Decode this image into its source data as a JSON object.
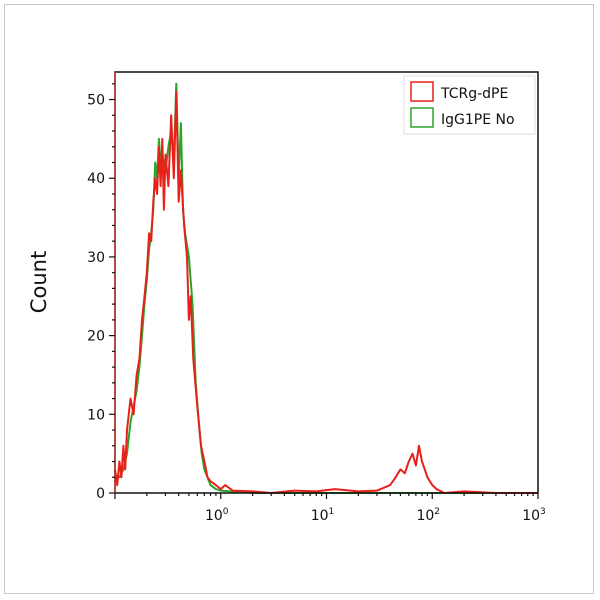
{
  "chart_data": {
    "type": "line",
    "title": "",
    "xlabel": "",
    "ylabel": "Count",
    "xscale": "log",
    "xlim": [
      0.1,
      1000
    ],
    "ylim": [
      0,
      53.5
    ],
    "x_ticks": [
      {
        "value": 1,
        "label": "10",
        "exp": "0"
      },
      {
        "value": 10,
        "label": "10",
        "exp": "1"
      },
      {
        "value": 100,
        "label": "10",
        "exp": "2"
      },
      {
        "value": 1000,
        "label": "10",
        "exp": "3"
      }
    ],
    "y_ticks": [
      0,
      10,
      20,
      30,
      40,
      50
    ],
    "grid": false,
    "legend_position": "top-right",
    "series": [
      {
        "name": "TCRg-dPE",
        "color": "#e8201a",
        "points": [
          [
            0.1,
            3
          ],
          [
            0.105,
            1
          ],
          [
            0.11,
            4
          ],
          [
            0.115,
            2
          ],
          [
            0.12,
            6
          ],
          [
            0.125,
            3
          ],
          [
            0.13,
            8
          ],
          [
            0.14,
            12
          ],
          [
            0.15,
            10
          ],
          [
            0.16,
            15
          ],
          [
            0.17,
            17
          ],
          [
            0.18,
            22
          ],
          [
            0.19,
            25
          ],
          [
            0.2,
            28
          ],
          [
            0.21,
            33
          ],
          [
            0.22,
            32
          ],
          [
            0.23,
            37
          ],
          [
            0.24,
            40
          ],
          [
            0.25,
            38
          ],
          [
            0.26,
            44
          ],
          [
            0.27,
            39
          ],
          [
            0.28,
            45
          ],
          [
            0.29,
            36
          ],
          [
            0.3,
            43
          ],
          [
            0.32,
            39
          ],
          [
            0.34,
            48
          ],
          [
            0.36,
            40
          ],
          [
            0.38,
            51
          ],
          [
            0.4,
            37
          ],
          [
            0.42,
            41
          ],
          [
            0.45,
            34
          ],
          [
            0.48,
            30
          ],
          [
            0.5,
            22
          ],
          [
            0.52,
            25
          ],
          [
            0.55,
            17
          ],
          [
            0.6,
            11
          ],
          [
            0.65,
            6
          ],
          [
            0.7,
            4
          ],
          [
            0.75,
            2
          ],
          [
            0.8,
            1.5
          ],
          [
            0.9,
            1
          ],
          [
            1.0,
            0.5
          ],
          [
            1.1,
            1
          ],
          [
            1.3,
            0.3
          ],
          [
            2,
            0.2
          ],
          [
            3,
            0
          ],
          [
            5,
            0.3
          ],
          [
            8,
            0.2
          ],
          [
            12,
            0.5
          ],
          [
            20,
            0.2
          ],
          [
            30,
            0.3
          ],
          [
            40,
            1
          ],
          [
            45,
            2
          ],
          [
            50,
            3
          ],
          [
            55,
            2.5
          ],
          [
            60,
            4
          ],
          [
            65,
            5
          ],
          [
            70,
            3.5
          ],
          [
            75,
            6
          ],
          [
            80,
            4
          ],
          [
            85,
            3
          ],
          [
            90,
            2
          ],
          [
            100,
            1
          ],
          [
            110,
            0.5
          ],
          [
            130,
            0
          ],
          [
            200,
            0.2
          ],
          [
            400,
            0
          ],
          [
            1000,
            0
          ]
        ]
      },
      {
        "name": "IgG1PE No",
        "color": "#2aa52a",
        "points": [
          [
            0.1,
            2
          ],
          [
            0.11,
            2
          ],
          [
            0.12,
            3
          ],
          [
            0.13,
            5
          ],
          [
            0.14,
            9
          ],
          [
            0.15,
            11
          ],
          [
            0.16,
            13
          ],
          [
            0.17,
            16
          ],
          [
            0.18,
            20
          ],
          [
            0.19,
            24
          ],
          [
            0.2,
            27
          ],
          [
            0.21,
            31
          ],
          [
            0.22,
            33
          ],
          [
            0.23,
            36
          ],
          [
            0.24,
            42
          ],
          [
            0.25,
            40
          ],
          [
            0.26,
            45
          ],
          [
            0.27,
            42
          ],
          [
            0.28,
            43
          ],
          [
            0.3,
            41
          ],
          [
            0.32,
            44
          ],
          [
            0.34,
            46
          ],
          [
            0.36,
            42
          ],
          [
            0.38,
            52
          ],
          [
            0.4,
            40
          ],
          [
            0.42,
            47
          ],
          [
            0.44,
            36
          ],
          [
            0.46,
            33
          ],
          [
            0.5,
            30
          ],
          [
            0.54,
            24
          ],
          [
            0.58,
            14
          ],
          [
            0.62,
            9
          ],
          [
            0.66,
            5
          ],
          [
            0.7,
            3
          ],
          [
            0.8,
            1
          ],
          [
            0.9,
            0.5
          ],
          [
            1.0,
            0.3
          ],
          [
            2,
            0
          ],
          [
            10,
            0
          ],
          [
            100,
            0
          ],
          [
            1000,
            0
          ]
        ]
      }
    ]
  }
}
